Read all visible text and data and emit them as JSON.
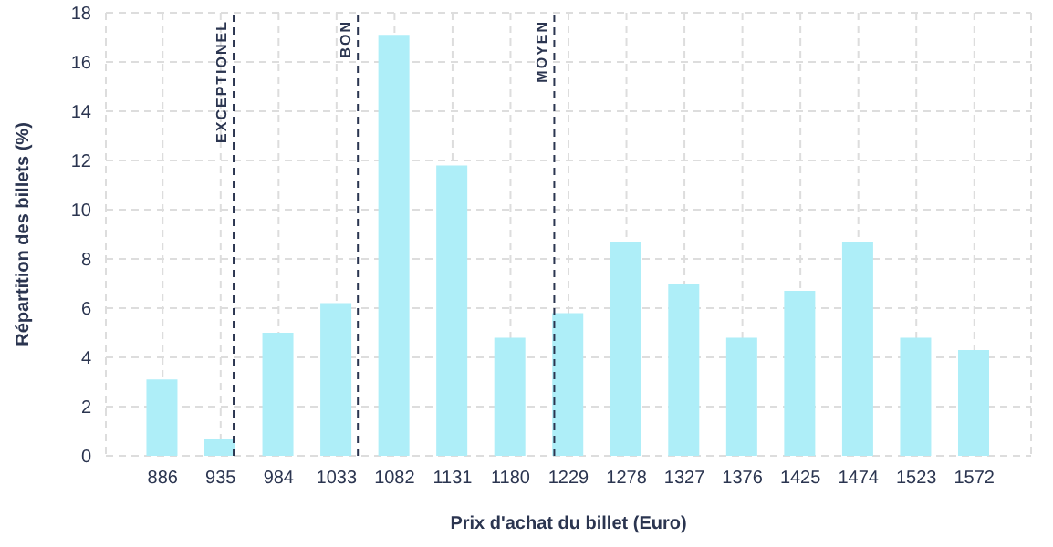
{
  "chart_data": {
    "type": "bar",
    "xlabel": "Prix d'achat du billet (Euro)",
    "ylabel": "Répartition des billets (%)",
    "x": [
      886,
      935,
      984,
      1033,
      1082,
      1131,
      1180,
      1229,
      1278,
      1327,
      1376,
      1425,
      1474,
      1523,
      1572
    ],
    "values": [
      3.1,
      0.7,
      5.0,
      6.2,
      17.1,
      11.8,
      4.8,
      5.8,
      8.7,
      7.0,
      4.8,
      6.7,
      8.7,
      4.8,
      4.3
    ],
    "color": "#aeeef8",
    "xlim": [
      838,
      1620
    ],
    "xticks": [
      886,
      935,
      984,
      1033,
      1082,
      1131,
      1180,
      1229,
      1278,
      1327,
      1376,
      1425,
      1474,
      1523,
      1572
    ],
    "ylim": [
      0,
      18
    ],
    "yticks": [
      0,
      2,
      4,
      6,
      8,
      10,
      12,
      14,
      16,
      18
    ],
    "grid": true,
    "ref_lines": [
      {
        "axis": "x",
        "value": 946,
        "label": "EXCEPTIONEL",
        "color": "#2b3550",
        "line_style": "dashed"
      },
      {
        "axis": "x",
        "value": 1051,
        "label": "BON",
        "color": "#2b3550",
        "line_style": "dashed"
      },
      {
        "axis": "x",
        "value": 1217,
        "label": "MOYEN",
        "color": "#2b3550",
        "line_style": "dashed"
      }
    ]
  }
}
